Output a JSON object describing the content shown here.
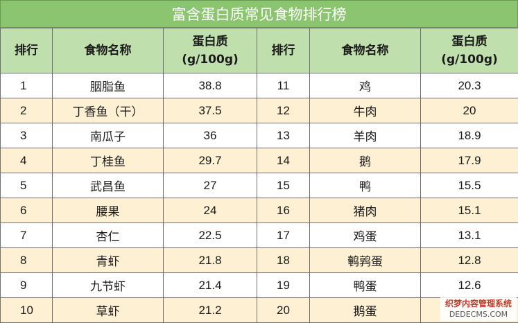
{
  "title": "富含蛋白质常见食物排行榜",
  "headers": {
    "rank": "排行",
    "name": "食物名称",
    "protein_line1": "蛋白质",
    "protein_line2": "(g/100g)"
  },
  "rows": [
    {
      "r1": "1",
      "n1": "胭脂鱼",
      "v1": "38.8",
      "r2": "11",
      "n2": "鸡",
      "v2": "20.3"
    },
    {
      "r1": "2",
      "n1": "丁香鱼（干）",
      "v1": "37.5",
      "r2": "12",
      "n2": "牛肉",
      "v2": "20"
    },
    {
      "r1": "3",
      "n1": "南瓜子",
      "v1": "36",
      "r2": "13",
      "n2": "羊肉",
      "v2": "18.9"
    },
    {
      "r1": "4",
      "n1": "丁桂鱼",
      "v1": "29.7",
      "r2": "14",
      "n2": "鹅",
      "v2": "17.9"
    },
    {
      "r1": "5",
      "n1": "武昌鱼",
      "v1": "27",
      "r2": "15",
      "n2": "鸭",
      "v2": "15.5"
    },
    {
      "r1": "6",
      "n1": "腰果",
      "v1": "24",
      "r2": "16",
      "n2": "猪肉",
      "v2": "15.1"
    },
    {
      "r1": "7",
      "n1": "杏仁",
      "v1": "22.5",
      "r2": "17",
      "n2": "鸡蛋",
      "v2": "13.1"
    },
    {
      "r1": "8",
      "n1": "青虾",
      "v1": "21.8",
      "r2": "18",
      "n2": "鹌鹑蛋",
      "v2": "12.8"
    },
    {
      "r1": "9",
      "n1": "九节虾",
      "v1": "21.4",
      "r2": "19",
      "n2": "鸭蛋",
      "v2": "12.6"
    },
    {
      "r1": "10",
      "n1": "草虾",
      "v1": "21.2",
      "r2": "20",
      "n2": "鹅蛋",
      "v2": ""
    }
  ],
  "watermark": {
    "line1": "织梦内容管理系统",
    "line2": "DEDECMS.COM"
  },
  "colors": {
    "title_bg": "#8cc56f",
    "header_bg": "#bfe0ad",
    "stripe": "#fdf0d3"
  }
}
